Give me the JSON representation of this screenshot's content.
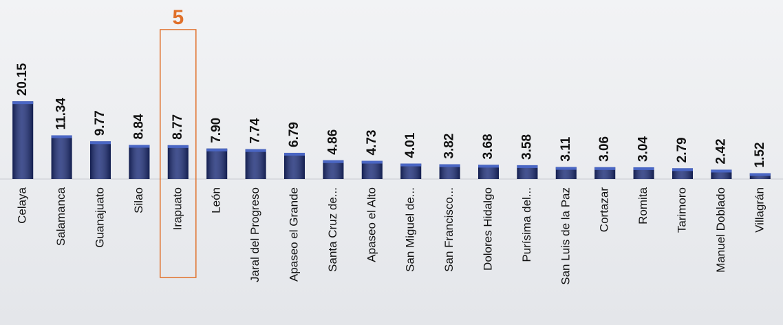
{
  "chart_data": {
    "type": "bar",
    "categories": [
      "Celaya",
      "Salamanca",
      "Guanajuato",
      "Silao",
      "Irapuato",
      "León",
      "Jaral del Progreso",
      "Apaseo el Grande",
      "Santa Cruz de...",
      "Apaseo el Alto",
      "San Miguel de...",
      "San Francisco...",
      "Dolores Hidalgo",
      "Purísima del...",
      "San Luis de la Paz",
      "Cortazar",
      "Romita",
      "Tarimoro",
      "Manuel Doblado",
      "Villagrán"
    ],
    "values": [
      20.15,
      11.34,
      9.77,
      8.84,
      8.77,
      7.9,
      7.74,
      6.79,
      4.86,
      4.73,
      4.01,
      3.82,
      3.68,
      3.58,
      3.11,
      3.06,
      3.04,
      2.79,
      2.42,
      1.52
    ],
    "value_labels": [
      "20.15",
      "11.34",
      "9.77",
      "8.84",
      "8.77",
      "7.90",
      "7.74",
      "6.79",
      "4.86",
      "4.73",
      "4.01",
      "3.82",
      "3.68",
      "3.58",
      "3.11",
      "3.06",
      "3.04",
      "2.79",
      "2.42",
      "1.52"
    ],
    "color": "#1c2d78",
    "ylim": [
      0,
      40
    ],
    "highlight": {
      "category": "Irapuato",
      "label": "5",
      "color": "#e0702a"
    }
  }
}
